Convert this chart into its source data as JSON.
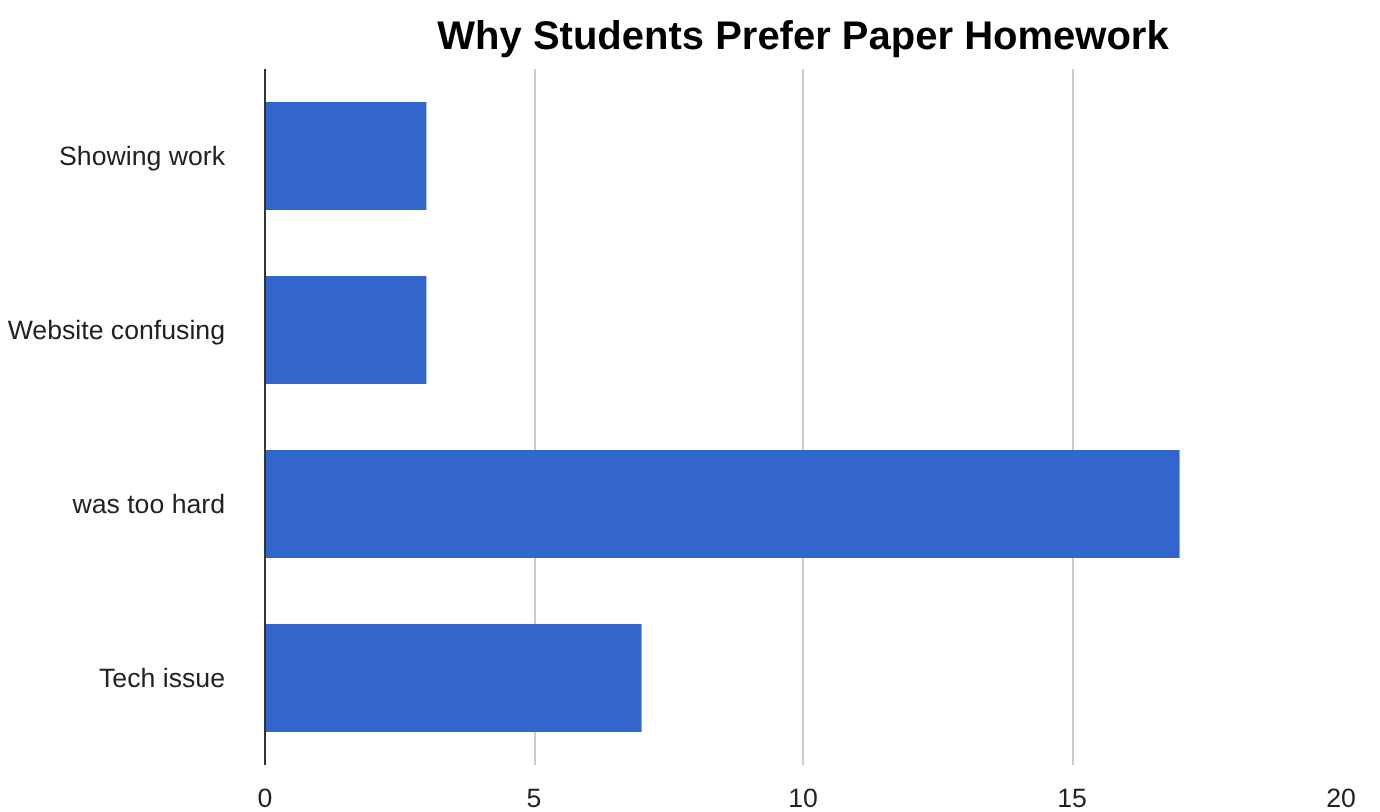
{
  "chart_data": {
    "type": "bar",
    "orientation": "horizontal",
    "title": "Why Students Prefer Paper Homework",
    "categories": [
      "Showing work",
      "Website confusing",
      "was too hard",
      "Tech issue"
    ],
    "values": [
      3,
      3,
      17,
      7
    ],
    "color": "#3366cc",
    "xlim": [
      0,
      20
    ],
    "xticks": [
      0,
      5,
      10,
      15,
      20
    ],
    "grid": "x"
  }
}
